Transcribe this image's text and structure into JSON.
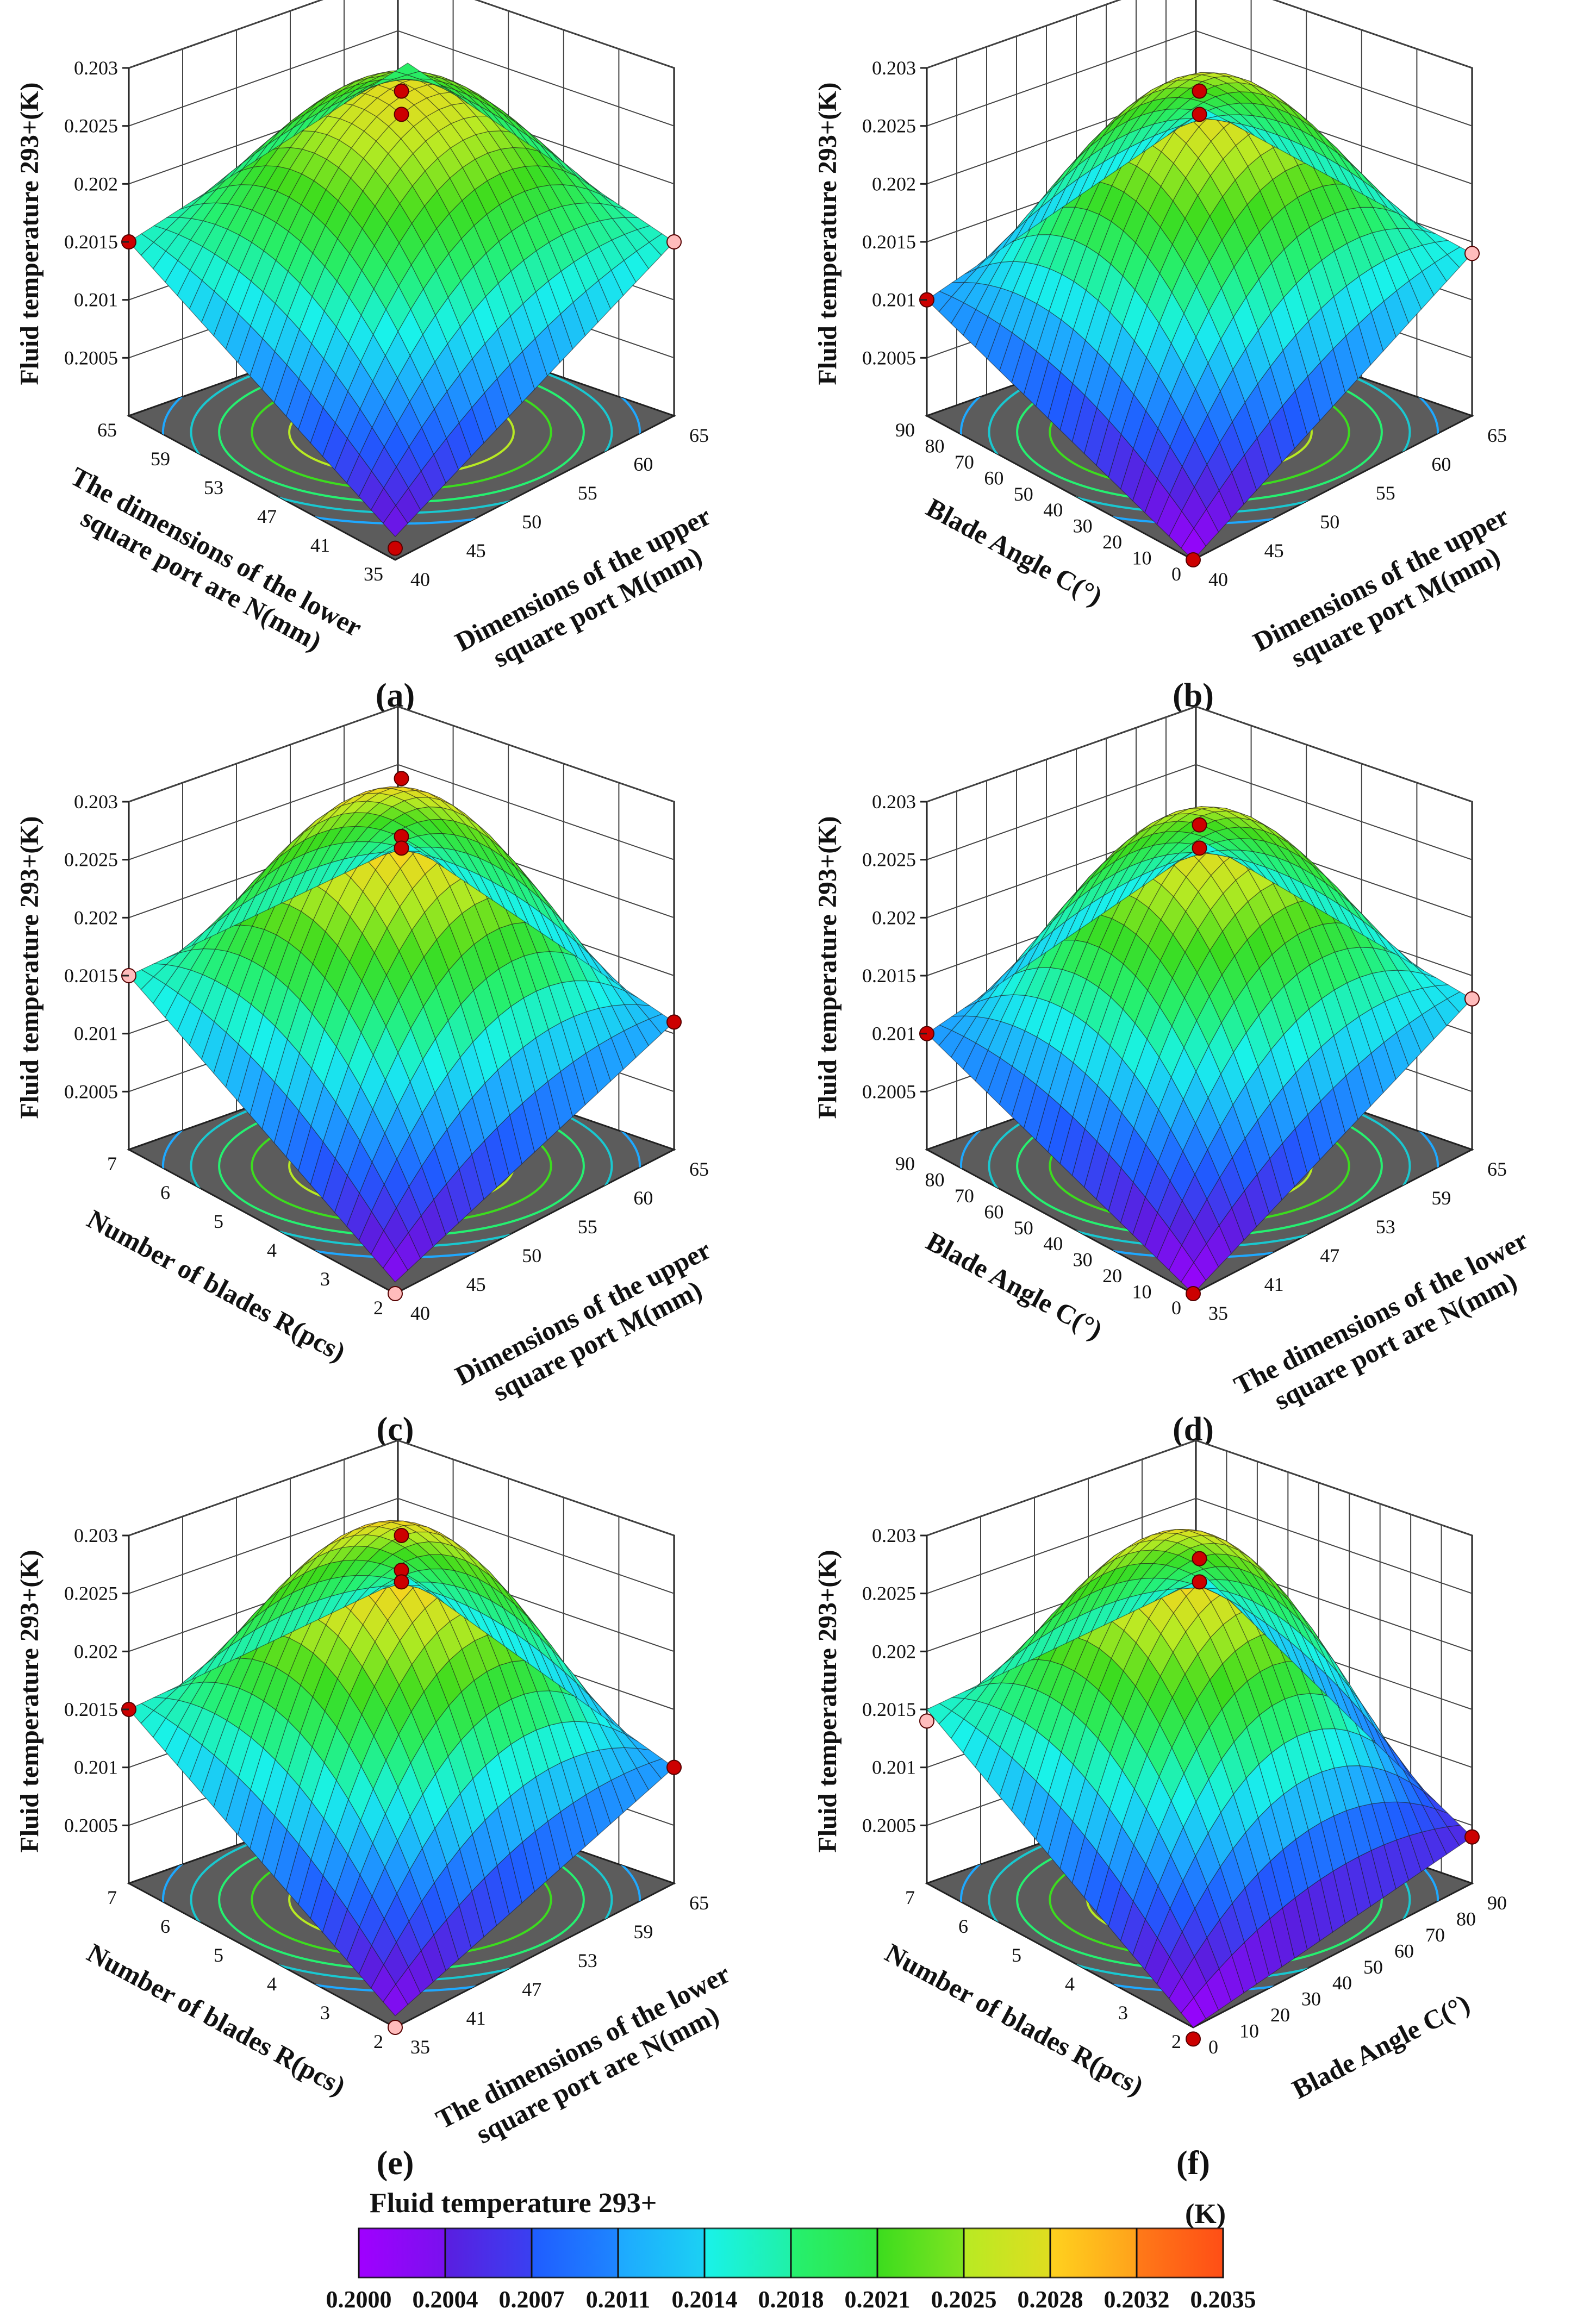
{
  "figure": {
    "caption_unit": "(K)",
    "colorbar": {
      "title": "Fluid temperature 293+",
      "unit": "(K)",
      "ticks": [
        "0.2000",
        "0.2004",
        "0.2007",
        "0.2011",
        "0.2014",
        "0.2018",
        "0.2021",
        "0.2025",
        "0.2028",
        "0.2032",
        "0.2035"
      ],
      "min": 0.2,
      "max": 0.2035,
      "colors": [
        "#a000ff",
        "#5a1ee0",
        "#1f5cff",
        "#1ea8ff",
        "#19f2ea",
        "#25f070",
        "#3cdc1e",
        "#b8ea23",
        "#ffd21e",
        "#ff7a18",
        "#ff2a14"
      ]
    }
  },
  "chart_data": [
    {
      "type": "surface3d",
      "panel_label": "(a)",
      "zlabel": "Fluid temperature 293+(K)",
      "z_ticks": [
        "0.2005",
        "0.201",
        "0.2015",
        "0.202",
        "0.2025",
        "0.203"
      ],
      "zlim": [
        0.2,
        0.203
      ],
      "xlabel_lines": [
        "Dimensions of the upper",
        "square port M(mm)"
      ],
      "x_ticks": [
        "40",
        "45",
        "50",
        "55",
        "60",
        "65"
      ],
      "ylabel_lines": [
        "The dimensions of the lower",
        "square port are N(mm)"
      ],
      "y_ticks": [
        "35",
        "41",
        "47",
        "53",
        "59",
        "65"
      ],
      "center_value": 0.2026,
      "edge_values": [
        0.2015,
        0.2015,
        0.2002,
        0.2018
      ],
      "design_points": [
        {
          "i": 0.0,
          "j": 1.0,
          "z": 0.2015,
          "color": "#cc0000"
        },
        {
          "i": 1.0,
          "j": 0.0,
          "z": 0.2015,
          "color": "#ffbcbc"
        },
        {
          "i": 0.5,
          "j": 0.5,
          "z": 0.2028,
          "color": "#cc0000"
        },
        {
          "i": 0.5,
          "j": 0.5,
          "z": 0.2026,
          "color": "#cc0000"
        },
        {
          "i": 0.0,
          "j": 0.0,
          "z": 0.2001,
          "color": "#cc0000"
        }
      ]
    },
    {
      "type": "surface3d",
      "panel_label": "(b)",
      "zlabel": "Fluid temperature 293+(K)",
      "z_ticks": [
        "0.2005",
        "0.201",
        "0.2015",
        "0.202",
        "0.2025",
        "0.203"
      ],
      "zlim": [
        0.2,
        0.203
      ],
      "xlabel_lines": [
        "Dimensions of the upper",
        "square port M(mm)"
      ],
      "x_ticks": [
        "40",
        "45",
        "50",
        "55",
        "60",
        "65"
      ],
      "ylabel_lines": [
        "Blade Angle C(°)"
      ],
      "y_ticks": [
        "0",
        "10",
        "20",
        "30",
        "40",
        "50",
        "60",
        "70",
        "80",
        "90"
      ],
      "center_value": 0.2027,
      "edge_values": [
        0.201,
        0.2014,
        0.2,
        0.2014
      ],
      "design_points": [
        {
          "i": 0.0,
          "j": 1.0,
          "z": 0.201,
          "color": "#cc0000"
        },
        {
          "i": 1.0,
          "j": 0.0,
          "z": 0.2014,
          "color": "#ffbcbc"
        },
        {
          "i": 0.5,
          "j": 0.5,
          "z": 0.2028,
          "color": "#cc0000"
        },
        {
          "i": 0.5,
          "j": 0.5,
          "z": 0.2026,
          "color": "#cc0000"
        },
        {
          "i": 0.0,
          "j": 0.0,
          "z": 0.2,
          "color": "#cc0000"
        }
      ]
    },
    {
      "type": "surface3d",
      "panel_label": "(c)",
      "zlabel": "Fluid temperature 293+(K)",
      "z_ticks": [
        "0.2005",
        "0.201",
        "0.2015",
        "0.202",
        "0.2025",
        "0.203"
      ],
      "zlim": [
        0.2,
        0.203
      ],
      "xlabel_lines": [
        "Dimensions of the upper",
        "square port M(mm)"
      ],
      "x_ticks": [
        "40",
        "45",
        "50",
        "55",
        "60",
        "65"
      ],
      "ylabel_lines": [
        "Number of blades R(pcs)"
      ],
      "y_ticks": [
        "2",
        "3",
        "4",
        "5",
        "6",
        "7"
      ],
      "center_value": 0.2029,
      "edge_values": [
        0.2015,
        0.2011,
        0.2001,
        0.2014
      ],
      "design_points": [
        {
          "i": 0.0,
          "j": 1.0,
          "z": 0.2015,
          "color": "#ffbcbc"
        },
        {
          "i": 1.0,
          "j": 0.0,
          "z": 0.2011,
          "color": "#cc0000"
        },
        {
          "i": 0.5,
          "j": 0.5,
          "z": 0.2032,
          "color": "#cc0000"
        },
        {
          "i": 0.5,
          "j": 0.5,
          "z": 0.2027,
          "color": "#cc0000"
        },
        {
          "i": 0.5,
          "j": 0.5,
          "z": 0.2026,
          "color": "#cc0000"
        },
        {
          "i": 0.0,
          "j": 0.0,
          "z": 0.2,
          "color": "#ffbcbc"
        }
      ]
    },
    {
      "type": "surface3d",
      "panel_label": "(d)",
      "zlabel": "Fluid temperature 293+(K)",
      "z_ticks": [
        "0.2005",
        "0.201",
        "0.2015",
        "0.202",
        "0.2025",
        "0.203"
      ],
      "zlim": [
        0.2,
        0.203
      ],
      "xlabel_lines": [
        "The dimensions of the lower",
        "square port are N(mm)"
      ],
      "x_ticks": [
        "35",
        "41",
        "47",
        "53",
        "59",
        "65"
      ],
      "ylabel_lines": [
        "Blade Angle C(°)"
      ],
      "y_ticks": [
        "0",
        "10",
        "20",
        "30",
        "40",
        "50",
        "60",
        "70",
        "80",
        "90"
      ],
      "center_value": 0.2027,
      "edge_values": [
        0.201,
        0.2013,
        0.2,
        0.2014
      ],
      "design_points": [
        {
          "i": 0.0,
          "j": 1.0,
          "z": 0.201,
          "color": "#cc0000"
        },
        {
          "i": 1.0,
          "j": 0.0,
          "z": 0.2013,
          "color": "#ffbcbc"
        },
        {
          "i": 0.5,
          "j": 0.5,
          "z": 0.2028,
          "color": "#cc0000"
        },
        {
          "i": 0.5,
          "j": 0.5,
          "z": 0.2026,
          "color": "#cc0000"
        },
        {
          "i": 0.0,
          "j": 0.0,
          "z": 0.2,
          "color": "#cc0000"
        }
      ]
    },
    {
      "type": "surface3d",
      "panel_label": "(e)",
      "zlabel": "Fluid temperature 293+(K)",
      "z_ticks": [
        "0.2005",
        "0.201",
        "0.2015",
        "0.202",
        "0.2025",
        "0.203"
      ],
      "zlim": [
        0.2,
        0.203
      ],
      "xlabel_lines": [
        "The dimensions of the lower",
        "square port are N(mm)"
      ],
      "x_ticks": [
        "35",
        "41",
        "47",
        "53",
        "59",
        "65"
      ],
      "ylabel_lines": [
        "Number of blades R(pcs)"
      ],
      "y_ticks": [
        "2",
        "3",
        "4",
        "5",
        "6",
        "7"
      ],
      "center_value": 0.2029,
      "edge_values": [
        0.2015,
        0.201,
        0.2001,
        0.2014
      ],
      "design_points": [
        {
          "i": 0.0,
          "j": 1.0,
          "z": 0.2015,
          "color": "#cc0000"
        },
        {
          "i": 1.0,
          "j": 0.0,
          "z": 0.201,
          "color": "#cc0000"
        },
        {
          "i": 0.5,
          "j": 0.5,
          "z": 0.203,
          "color": "#cc0000"
        },
        {
          "i": 0.5,
          "j": 0.5,
          "z": 0.2027,
          "color": "#cc0000"
        },
        {
          "i": 0.5,
          "j": 0.5,
          "z": 0.2026,
          "color": "#cc0000"
        },
        {
          "i": 0.0,
          "j": 0.0,
          "z": 0.2,
          "color": "#ffbcbc"
        }
      ]
    },
    {
      "type": "surface3d",
      "panel_label": "(f)",
      "zlabel": "Fluid temperature 293+(K)",
      "z_ticks": [
        "0.2005",
        "0.201",
        "0.2015",
        "0.202",
        "0.2025",
        "0.203"
      ],
      "zlim": [
        0.2,
        0.203
      ],
      "xlabel_lines": [
        "Blade Angle C(°)"
      ],
      "x_ticks": [
        "0",
        "10",
        "20",
        "30",
        "40",
        "50",
        "60",
        "70",
        "80",
        "90"
      ],
      "ylabel_lines": [
        "Number of blades R(pcs)"
      ],
      "y_ticks": [
        "2",
        "3",
        "4",
        "5",
        "6",
        "7"
      ],
      "center_value": 0.2028,
      "edge_values": [
        0.2015,
        0.2004,
        0.2,
        0.2014
      ],
      "design_points": [
        {
          "i": 0.0,
          "j": 1.0,
          "z": 0.2014,
          "color": "#ffbcbc"
        },
        {
          "i": 1.0,
          "j": 0.0,
          "z": 0.2004,
          "color": "#cc0000"
        },
        {
          "i": 0.5,
          "j": 0.5,
          "z": 0.2028,
          "color": "#cc0000"
        },
        {
          "i": 0.5,
          "j": 0.5,
          "z": 0.2026,
          "color": "#cc0000"
        },
        {
          "i": 0.0,
          "j": 0.0,
          "z": 0.1999,
          "color": "#cc0000"
        }
      ]
    }
  ]
}
